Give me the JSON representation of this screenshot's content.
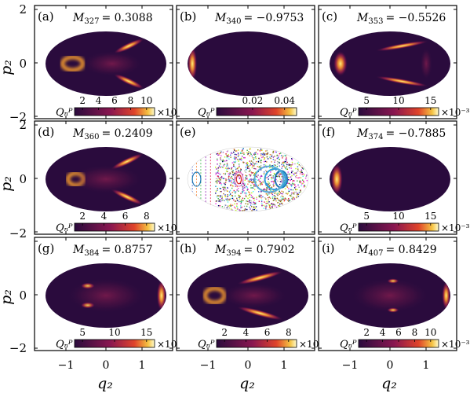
{
  "figure": {
    "ylabel": "p₂",
    "xlabel": "q₂",
    "x_ticks": [
      "−1",
      "0",
      "1"
    ],
    "y_ticks": [
      "2",
      "0",
      "−2"
    ],
    "colorbar_label": "Qₙᴾ",
    "exponent_label": "×10⁻³"
  },
  "panels": [
    {
      "tag": "(a)",
      "mvar": "M",
      "msub": "327",
      "mval": "= 0.3088",
      "cbar": [
        "2",
        "4",
        "6",
        "8",
        "10"
      ],
      "exp": true
    },
    {
      "tag": "(b)",
      "mvar": "M",
      "msub": "340",
      "mval": "= −0.9753",
      "cbar": [
        "0.02",
        "0.04"
      ],
      "exp": false
    },
    {
      "tag": "(c)",
      "mvar": "M",
      "msub": "353",
      "mval": "= −0.5526",
      "cbar": [
        "5",
        "10",
        "15"
      ],
      "exp": true
    },
    {
      "tag": "(d)",
      "mvar": "M",
      "msub": "360",
      "mval": "= 0.2409",
      "cbar": [
        "2",
        "4",
        "6",
        "8"
      ],
      "exp": true
    },
    {
      "tag": "(e)",
      "mvar": "",
      "msub": "",
      "mval": "",
      "cbar": [],
      "exp": false
    },
    {
      "tag": "(f)",
      "mvar": "M",
      "msub": "374",
      "mval": "= −0.7885",
      "cbar": [
        "5",
        "10",
        "15"
      ],
      "exp": true
    },
    {
      "tag": "(g)",
      "mvar": "M",
      "msub": "384",
      "mval": "= 0.8757",
      "cbar": [
        "5",
        "10",
        "15"
      ],
      "exp": true
    },
    {
      "tag": "(h)",
      "mvar": "M",
      "msub": "394",
      "mval": "= 0.7902",
      "cbar": [
        "2",
        "4",
        "6",
        "8"
      ],
      "exp": true
    },
    {
      "tag": "(i)",
      "mvar": "M",
      "msub": "407",
      "mval": "= 0.8429",
      "cbar": [
        "2",
        "4",
        "6",
        "8",
        "10"
      ],
      "exp": true
    }
  ],
  "colors": {
    "background": "#2a0b3d",
    "map_low": "#2a0b3d",
    "map_mid": "#c2185b",
    "map_high": "#f5e34a",
    "map_top": "#fffbd0"
  }
}
